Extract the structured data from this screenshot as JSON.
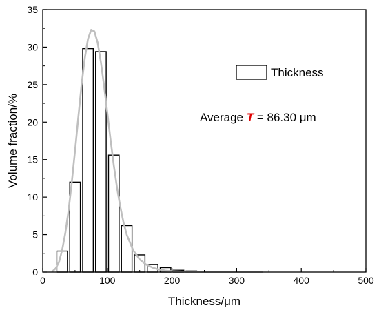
{
  "chart_data": {
    "type": "bar",
    "xlabel": "Thickness/μm",
    "ylabel": "Volume fraction/%",
    "xlim": [
      0,
      500
    ],
    "ylim": [
      0,
      35
    ],
    "xticks": [
      0,
      100,
      200,
      300,
      400,
      500
    ],
    "yticks": [
      0,
      5,
      10,
      15,
      20,
      25,
      30,
      35
    ],
    "grid": false,
    "legend_position": "top-right",
    "series": [
      {
        "name": "Thickness",
        "type": "bar",
        "bin_width": 20,
        "x": [
          30,
          50,
          70,
          90,
          110,
          130,
          150,
          170,
          190,
          210,
          230,
          250,
          270,
          290,
          310,
          330
        ],
        "values": [
          2.8,
          12.0,
          29.8,
          29.4,
          15.6,
          6.2,
          2.3,
          1.0,
          0.6,
          0.25,
          0.15,
          0.1,
          0.08,
          0.05,
          0.05,
          0.03
        ],
        "color": "#000000"
      },
      {
        "type": "line",
        "color": "#bfbfbf",
        "x": [
          15,
          20,
          25,
          30,
          35,
          40,
          45,
          50,
          55,
          60,
          65,
          70,
          75,
          80,
          85,
          90,
          95,
          100,
          105,
          110,
          115,
          120,
          125,
          130,
          140,
          150,
          160,
          170,
          180,
          190,
          200,
          210,
          220,
          240,
          260,
          280,
          300,
          320,
          340
        ],
        "values": [
          0.1,
          0.5,
          1.3,
          2.9,
          5.2,
          8.2,
          12.0,
          16.2,
          20.6,
          24.9,
          28.5,
          31.1,
          32.3,
          32.1,
          30.6,
          28.0,
          24.8,
          21.2,
          17.6,
          14.2,
          11.2,
          8.7,
          6.6,
          5.0,
          2.9,
          1.7,
          1.0,
          0.6,
          0.35,
          0.2,
          0.12,
          0.08,
          0.05,
          0.02,
          0.01,
          0.0,
          0.0,
          0.0,
          0.0
        ]
      }
    ],
    "annotation": {
      "prefix": "Average ",
      "symbol": "T",
      "symbol_color": "#e00000",
      "suffix": " = 86.30 μm"
    }
  }
}
